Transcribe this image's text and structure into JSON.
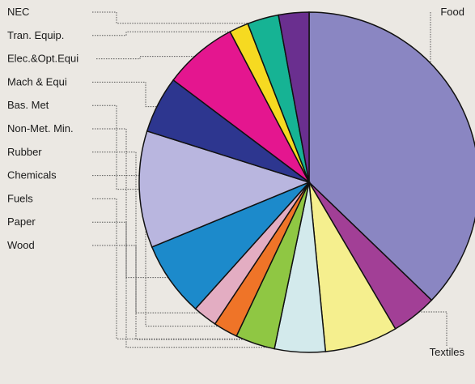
{
  "chart_data": {
    "type": "pie",
    "title": "",
    "grid": false,
    "start": "12 o'clock, clockwise",
    "slices": [
      {
        "label": "Food",
        "value": 38.6,
        "color": "#8a86c2"
      },
      {
        "label": "Textiles",
        "value": 4.5,
        "color": "#a23f96"
      },
      {
        "label": "Wood",
        "value": 7.2,
        "color": "#f5ef8e"
      },
      {
        "label": "Paper",
        "value": 5.0,
        "color": "#d3eaec"
      },
      {
        "label": "Fuels",
        "value": 3.9,
        "color": "#8fc743"
      },
      {
        "label": "Chemicals",
        "value": 2.4,
        "color": "#ef7428"
      },
      {
        "label": "Rubber",
        "value": 2.4,
        "color": "#e3adc2"
      },
      {
        "label": "Non-Met. Min.",
        "value": 7.4,
        "color": "#1c8acb"
      },
      {
        "label": "Bas. Met",
        "value": 11.5,
        "color": "#b9b6df"
      },
      {
        "label": "Mach & Equi",
        "value": 5.6,
        "color": "#2d368f"
      },
      {
        "label": "Elec.&Opt.Equi",
        "value": 7.3,
        "color": "#e4168f"
      },
      {
        "label": "Tran. Equip.",
        "value": 1.9,
        "color": "#f6da21"
      },
      {
        "label": "NEC",
        "value": 3.1,
        "color": "#16b394"
      },
      {
        "label": "",
        "value": 3.0,
        "color": "#6a2f8f"
      }
    ]
  }
}
